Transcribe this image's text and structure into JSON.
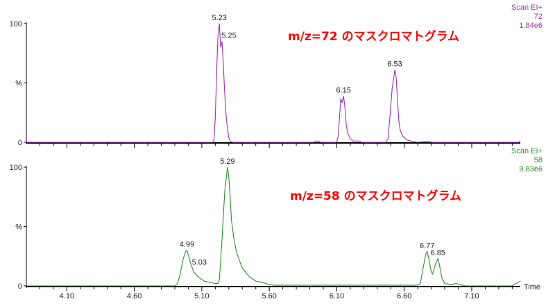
{
  "chart_data": [
    {
      "type": "line",
      "title": "m/z=72 のマスクロマトグラム",
      "header": [
        "Scan EI+",
        "72",
        "1.84e6"
      ],
      "color": "#9a2fb0",
      "ylabel": "%",
      "ytick_labels": [
        "100",
        "%",
        "0"
      ],
      "xlim": [
        3.8,
        7.46
      ],
      "ylim": [
        0,
        100
      ],
      "xticks": [],
      "peak_labels": [
        {
          "label": "5.23",
          "x": 5.23,
          "y": 100
        },
        {
          "label": "5.25",
          "x": 5.25,
          "y": 85
        },
        {
          "label": "6.15",
          "x": 6.15,
          "y": 39
        },
        {
          "label": "6.53",
          "x": 6.53,
          "y": 61
        }
      ],
      "series": [
        {
          "x": [
            3.8,
            5.18,
            5.19,
            5.2,
            5.21,
            5.22,
            5.23,
            5.24,
            5.25,
            5.26,
            5.27,
            5.28,
            5.29,
            5.3,
            5.31,
            5.33,
            5.93,
            5.94,
            5.96,
            5.98,
            6.1,
            6.11,
            6.12,
            6.13,
            6.14,
            6.15,
            6.16,
            6.17,
            6.18,
            6.2,
            6.22,
            6.27,
            6.28,
            6.46,
            6.48,
            6.5,
            6.51,
            6.53,
            6.54,
            6.55,
            6.56,
            6.57,
            6.59,
            6.62,
            6.65,
            6.7,
            6.78,
            6.8,
            7.45,
            7.46
          ],
          "y": [
            0,
            0,
            2,
            20,
            60,
            90,
            100,
            80,
            85,
            65,
            40,
            22,
            12,
            4,
            1,
            0,
            0,
            1,
            1,
            0,
            0,
            5,
            20,
            37,
            33,
            39,
            30,
            15,
            8,
            3,
            1,
            1,
            0,
            0,
            3,
            30,
            45,
            61,
            55,
            35,
            18,
            10,
            5,
            2,
            1,
            0,
            1,
            0,
            0,
            1
          ]
        }
      ]
    },
    {
      "type": "line",
      "title": "m/z=58 のマスクロマトグラム",
      "header": [
        "Scan EI+",
        "58",
        "9.83e6"
      ],
      "color": "#2a8f2a",
      "ylabel": "%",
      "xlabel": "Time",
      "ytick_labels": [
        "100",
        "%",
        "0"
      ],
      "xlim": [
        3.8,
        7.46
      ],
      "ylim": [
        0,
        100
      ],
      "xticks": [
        "4.10",
        "4.60",
        "5.10",
        "5.60",
        "6.10",
        "6.60",
        "7.10"
      ],
      "peak_labels": [
        {
          "label": "4.99",
          "x": 4.99,
          "y": 30
        },
        {
          "label": "5.03",
          "x": 5.03,
          "y": 15
        },
        {
          "label": "5.29",
          "x": 5.29,
          "y": 100
        },
        {
          "label": "6.77",
          "x": 6.77,
          "y": 29
        },
        {
          "label": "6.85",
          "x": 6.85,
          "y": 23
        }
      ],
      "series": [
        {
          "x": [
            3.8,
            4.9,
            4.92,
            4.94,
            4.96,
            4.98,
            4.99,
            5.0,
            5.02,
            5.03,
            5.04,
            5.06,
            5.09,
            5.12,
            5.16,
            5.2,
            5.22,
            5.23,
            5.25,
            5.27,
            5.29,
            5.3,
            5.31,
            5.32,
            5.34,
            5.36,
            5.4,
            5.45,
            5.5,
            5.55,
            5.6,
            5.65,
            6.7,
            6.72,
            6.74,
            6.76,
            6.77,
            6.78,
            6.8,
            6.81,
            6.83,
            6.85,
            6.86,
            6.88,
            6.9,
            6.95,
            6.98,
            7.02,
            7.05,
            7.4,
            7.46
          ],
          "y": [
            0,
            0,
            2,
            10,
            22,
            29,
            30,
            26,
            18,
            15,
            12,
            9,
            6,
            4,
            3,
            2,
            2,
            5,
            40,
            80,
            100,
            92,
            75,
            55,
            38,
            27,
            15,
            8,
            4,
            3,
            1,
            0.5,
            0.5,
            2,
            15,
            27,
            29,
            24,
            12,
            10,
            18,
            23,
            18,
            6,
            2,
            1,
            2,
            1,
            0,
            0,
            4
          ]
        }
      ]
    }
  ]
}
